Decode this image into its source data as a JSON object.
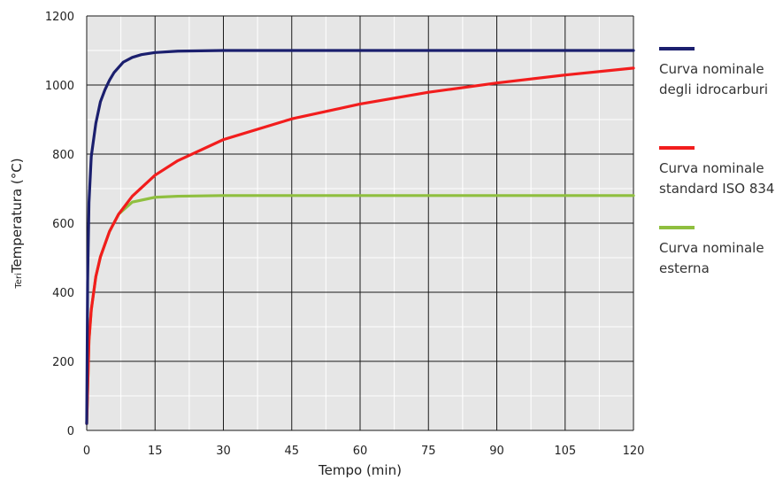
{
  "chart_data": {
    "type": "line",
    "title": "",
    "xlabel": "Tempo (min)",
    "ylabel": "Temperatura (°C)",
    "ylabel_prefix": "Teri",
    "xlim": [
      0,
      120
    ],
    "ylim": [
      0,
      1200
    ],
    "xticks": [
      0,
      15,
      30,
      45,
      60,
      75,
      90,
      105,
      120
    ],
    "yticks": [
      0,
      200,
      400,
      600,
      800,
      1000,
      1200
    ],
    "grid": true,
    "legend_position": "right",
    "series": [
      {
        "name_lines": [
          "Curva nominale",
          "degli idrocarburi"
        ],
        "color": "#1b1f6e",
        "x": [
          0,
          0.2,
          0.5,
          1,
          2,
          3,
          4,
          5,
          6,
          8,
          10,
          12,
          15,
          20,
          25,
          30,
          40,
          60,
          90,
          120
        ],
        "y": [
          20,
          430,
          660,
          793,
          889,
          951,
          986,
          1014,
          1036,
          1066,
          1080,
          1088,
          1094,
          1098,
          1099,
          1100,
          1100,
          1100,
          1100,
          1100
        ]
      },
      {
        "name_lines": [
          "Curva nominale",
          "standard ISO 834"
        ],
        "color": "#f21d1d",
        "x": [
          0,
          0.5,
          1,
          2,
          3,
          5,
          7,
          10,
          15,
          20,
          30,
          45,
          60,
          75,
          90,
          105,
          120
        ],
        "y": [
          20,
          261,
          349,
          445,
          502,
          576,
          626,
          678,
          739,
          781,
          842,
          902,
          945,
          979,
          1006,
          1029,
          1049
        ]
      },
      {
        "name_lines": [
          "Curva nominale",
          "esterna"
        ],
        "color": "#8fbf3f",
        "x": [
          0,
          0.5,
          1,
          2,
          3,
          5,
          7,
          10,
          15,
          20,
          30,
          60,
          90,
          120
        ],
        "y": [
          20,
          261,
          349,
          445,
          502,
          576,
          626,
          661,
          675,
          678,
          680,
          680,
          680,
          680
        ]
      }
    ]
  }
}
